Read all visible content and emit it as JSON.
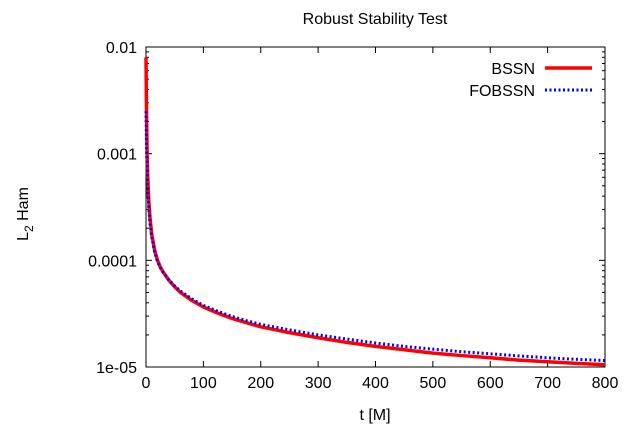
{
  "chart_data": {
    "type": "line",
    "title": "Robust Stability Test",
    "xlabel": "t [M]",
    "ylabel": {
      "base": "L",
      "subscript": "2",
      "rest": " Ham"
    },
    "x_scale": "linear",
    "y_scale": "log",
    "xlim": [
      0,
      800
    ],
    "ylim": [
      1e-05,
      0.01
    ],
    "x_ticks": [
      0,
      100,
      200,
      300,
      400,
      500,
      600,
      700,
      800
    ],
    "x_tick_labels": [
      "0",
      "100",
      "200",
      "300",
      "400",
      "500",
      "600",
      "700",
      "800"
    ],
    "y_ticks": [
      1e-05,
      0.0001,
      0.001,
      0.01
    ],
    "y_tick_labels": [
      "1e-05",
      "0.0001",
      "0.001",
      "0.01"
    ],
    "grid": false,
    "legend_position": "top-right",
    "series": [
      {
        "name": "BSSN",
        "color": "#ff0000",
        "style": "solid",
        "x": [
          0,
          0.5,
          1,
          2,
          3,
          5,
          7,
          10,
          15,
          20,
          25,
          30,
          40,
          50,
          60,
          80,
          100,
          125,
          150,
          175,
          200,
          250,
          300,
          350,
          400,
          450,
          500,
          550,
          600,
          650,
          700,
          750,
          800
        ],
        "y": [
          0.008,
          0.004,
          0.0022,
          0.00095,
          0.0006,
          0.00035,
          0.00025,
          0.000175,
          0.000125,
          0.0001,
          8.65e-05,
          7.75e-05,
          6.5e-05,
          5.65e-05,
          5e-05,
          4.2e-05,
          3.65e-05,
          3.2e-05,
          2.85e-05,
          2.6e-05,
          2.38e-05,
          2.1e-05,
          1.88e-05,
          1.7e-05,
          1.56e-05,
          1.45e-05,
          1.35e-05,
          1.28e-05,
          1.22e-05,
          1.16e-05,
          1.12e-05,
          1.08e-05,
          1.05e-05
        ]
      },
      {
        "name": "FOBSSN",
        "color": "#0000ff",
        "style": "dotted",
        "x": [
          0,
          0.5,
          1,
          2,
          3,
          5,
          7,
          10,
          15,
          20,
          25,
          30,
          40,
          50,
          60,
          80,
          100,
          125,
          150,
          175,
          200,
          250,
          300,
          350,
          400,
          450,
          500,
          550,
          600,
          650,
          700,
          750,
          800
        ],
        "y": [
          0.0025,
          0.0016,
          0.0011,
          0.0007,
          0.00048,
          0.0003,
          0.00022,
          0.000165,
          0.00012,
          9.75e-05,
          8.55e-05,
          7.7e-05,
          6.55e-05,
          5.75e-05,
          5.15e-05,
          4.35e-05,
          3.78e-05,
          3.33e-05,
          2.98e-05,
          2.72e-05,
          2.51e-05,
          2.23e-05,
          2e-05,
          1.83e-05,
          1.68e-05,
          1.56e-05,
          1.47e-05,
          1.39e-05,
          1.33e-05,
          1.27e-05,
          1.22e-05,
          1.18e-05,
          1.15e-05
        ]
      }
    ]
  }
}
